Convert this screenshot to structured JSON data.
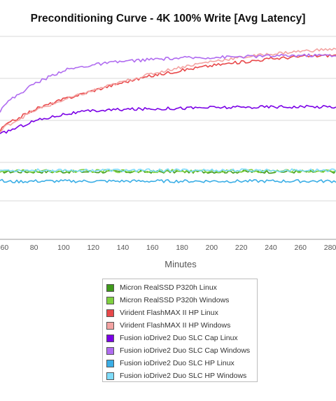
{
  "chart_data": {
    "type": "line",
    "title": "Preconditioning Curve - 4K 100% Write [Avg Latency]",
    "xlabel": "Minutes",
    "ylabel": "",
    "x_ticks": [
      "60",
      "80",
      "100",
      "120",
      "140",
      "160",
      "180",
      "200",
      "220",
      "240",
      "260",
      "280"
    ],
    "xlim": [
      57,
      284
    ],
    "y_axis": "no tick labels visible (relative scale)",
    "grid": true,
    "legend_position": "bottom-center",
    "series": [
      {
        "name": "Micron RealSSD P320h Linux",
        "color": "#3f9a1b",
        "x": [
          57,
          60,
          80,
          100,
          120,
          140,
          160,
          180,
          200,
          220,
          240,
          260,
          280,
          284
        ],
        "y": [
          1.0,
          1.0,
          1.0,
          1.0,
          1.0,
          1.0,
          1.0,
          1.0,
          1.0,
          1.0,
          1.0,
          1.0,
          1.0,
          1.0
        ]
      },
      {
        "name": "Micron RealSSD P320h Windows",
        "color": "#7fd13f",
        "x": [
          57,
          60,
          80,
          100,
          120,
          140,
          160,
          180,
          200,
          220,
          240,
          260,
          280,
          284
        ],
        "y": [
          1.01,
          1.01,
          1.01,
          1.01,
          1.01,
          1.01,
          1.01,
          1.01,
          1.01,
          1.01,
          1.01,
          1.01,
          1.01,
          1.01
        ]
      },
      {
        "name": "Virident FlashMAX II HP Linux",
        "color": "#e8484a",
        "x": [
          57,
          60,
          80,
          100,
          120,
          140,
          160,
          180,
          200,
          220,
          240,
          260,
          280,
          284
        ],
        "y": [
          1.6,
          1.68,
          1.92,
          2.07,
          2.2,
          2.32,
          2.42,
          2.5,
          2.57,
          2.62,
          2.67,
          2.7,
          2.72,
          2.72
        ]
      },
      {
        "name": "Virident FlashMAX II HP Windows",
        "color": "#f3a3a2",
        "x": [
          57,
          60,
          80,
          100,
          120,
          140,
          160,
          180,
          200,
          220,
          240,
          260,
          280,
          284
        ],
        "y": [
          1.58,
          1.66,
          1.9,
          2.06,
          2.2,
          2.33,
          2.45,
          2.55,
          2.63,
          2.69,
          2.74,
          2.78,
          2.81,
          2.81
        ]
      },
      {
        "name": "Fusion ioDrive2 Duo SLC Cap Linux",
        "color": "#7a00e6",
        "x": [
          57,
          60,
          80,
          100,
          120,
          140,
          160,
          180,
          200,
          220,
          240,
          260,
          280,
          284
        ],
        "y": [
          1.55,
          1.58,
          1.75,
          1.85,
          1.9,
          1.92,
          1.93,
          1.94,
          1.95,
          1.95,
          1.96,
          1.96,
          1.96,
          1.96
        ]
      },
      {
        "name": "Fusion ioDrive2 Duo SLC Cap Windows",
        "color": "#b06cf0",
        "x": [
          57,
          60,
          80,
          100,
          120,
          140,
          160,
          180,
          200,
          220,
          240,
          260,
          280,
          284
        ],
        "y": [
          1.9,
          2.0,
          2.3,
          2.5,
          2.58,
          2.63,
          2.66,
          2.68,
          2.69,
          2.7,
          2.71,
          2.72,
          2.72,
          2.72
        ]
      },
      {
        "name": "Fusion ioDrive2 Duo SLC HP Linux",
        "color": "#3aaee6",
        "x": [
          57,
          60,
          80,
          100,
          120,
          140,
          160,
          180,
          200,
          220,
          240,
          260,
          280,
          284
        ],
        "y": [
          0.88,
          0.85,
          0.86,
          0.86,
          0.86,
          0.86,
          0.86,
          0.86,
          0.86,
          0.86,
          0.86,
          0.86,
          0.86,
          0.86
        ]
      },
      {
        "name": "Fusion ioDrive2 Duo SLC HP Windows",
        "color": "#7fdcfa",
        "x": [
          57,
          60,
          80,
          100,
          120,
          140,
          160,
          180,
          200,
          220,
          240,
          260,
          280,
          284
        ],
        "y": [
          1.02,
          1.02,
          1.02,
          1.02,
          1.02,
          1.02,
          1.02,
          1.02,
          1.02,
          1.02,
          1.02,
          1.02,
          1.02,
          1.02
        ]
      }
    ]
  }
}
